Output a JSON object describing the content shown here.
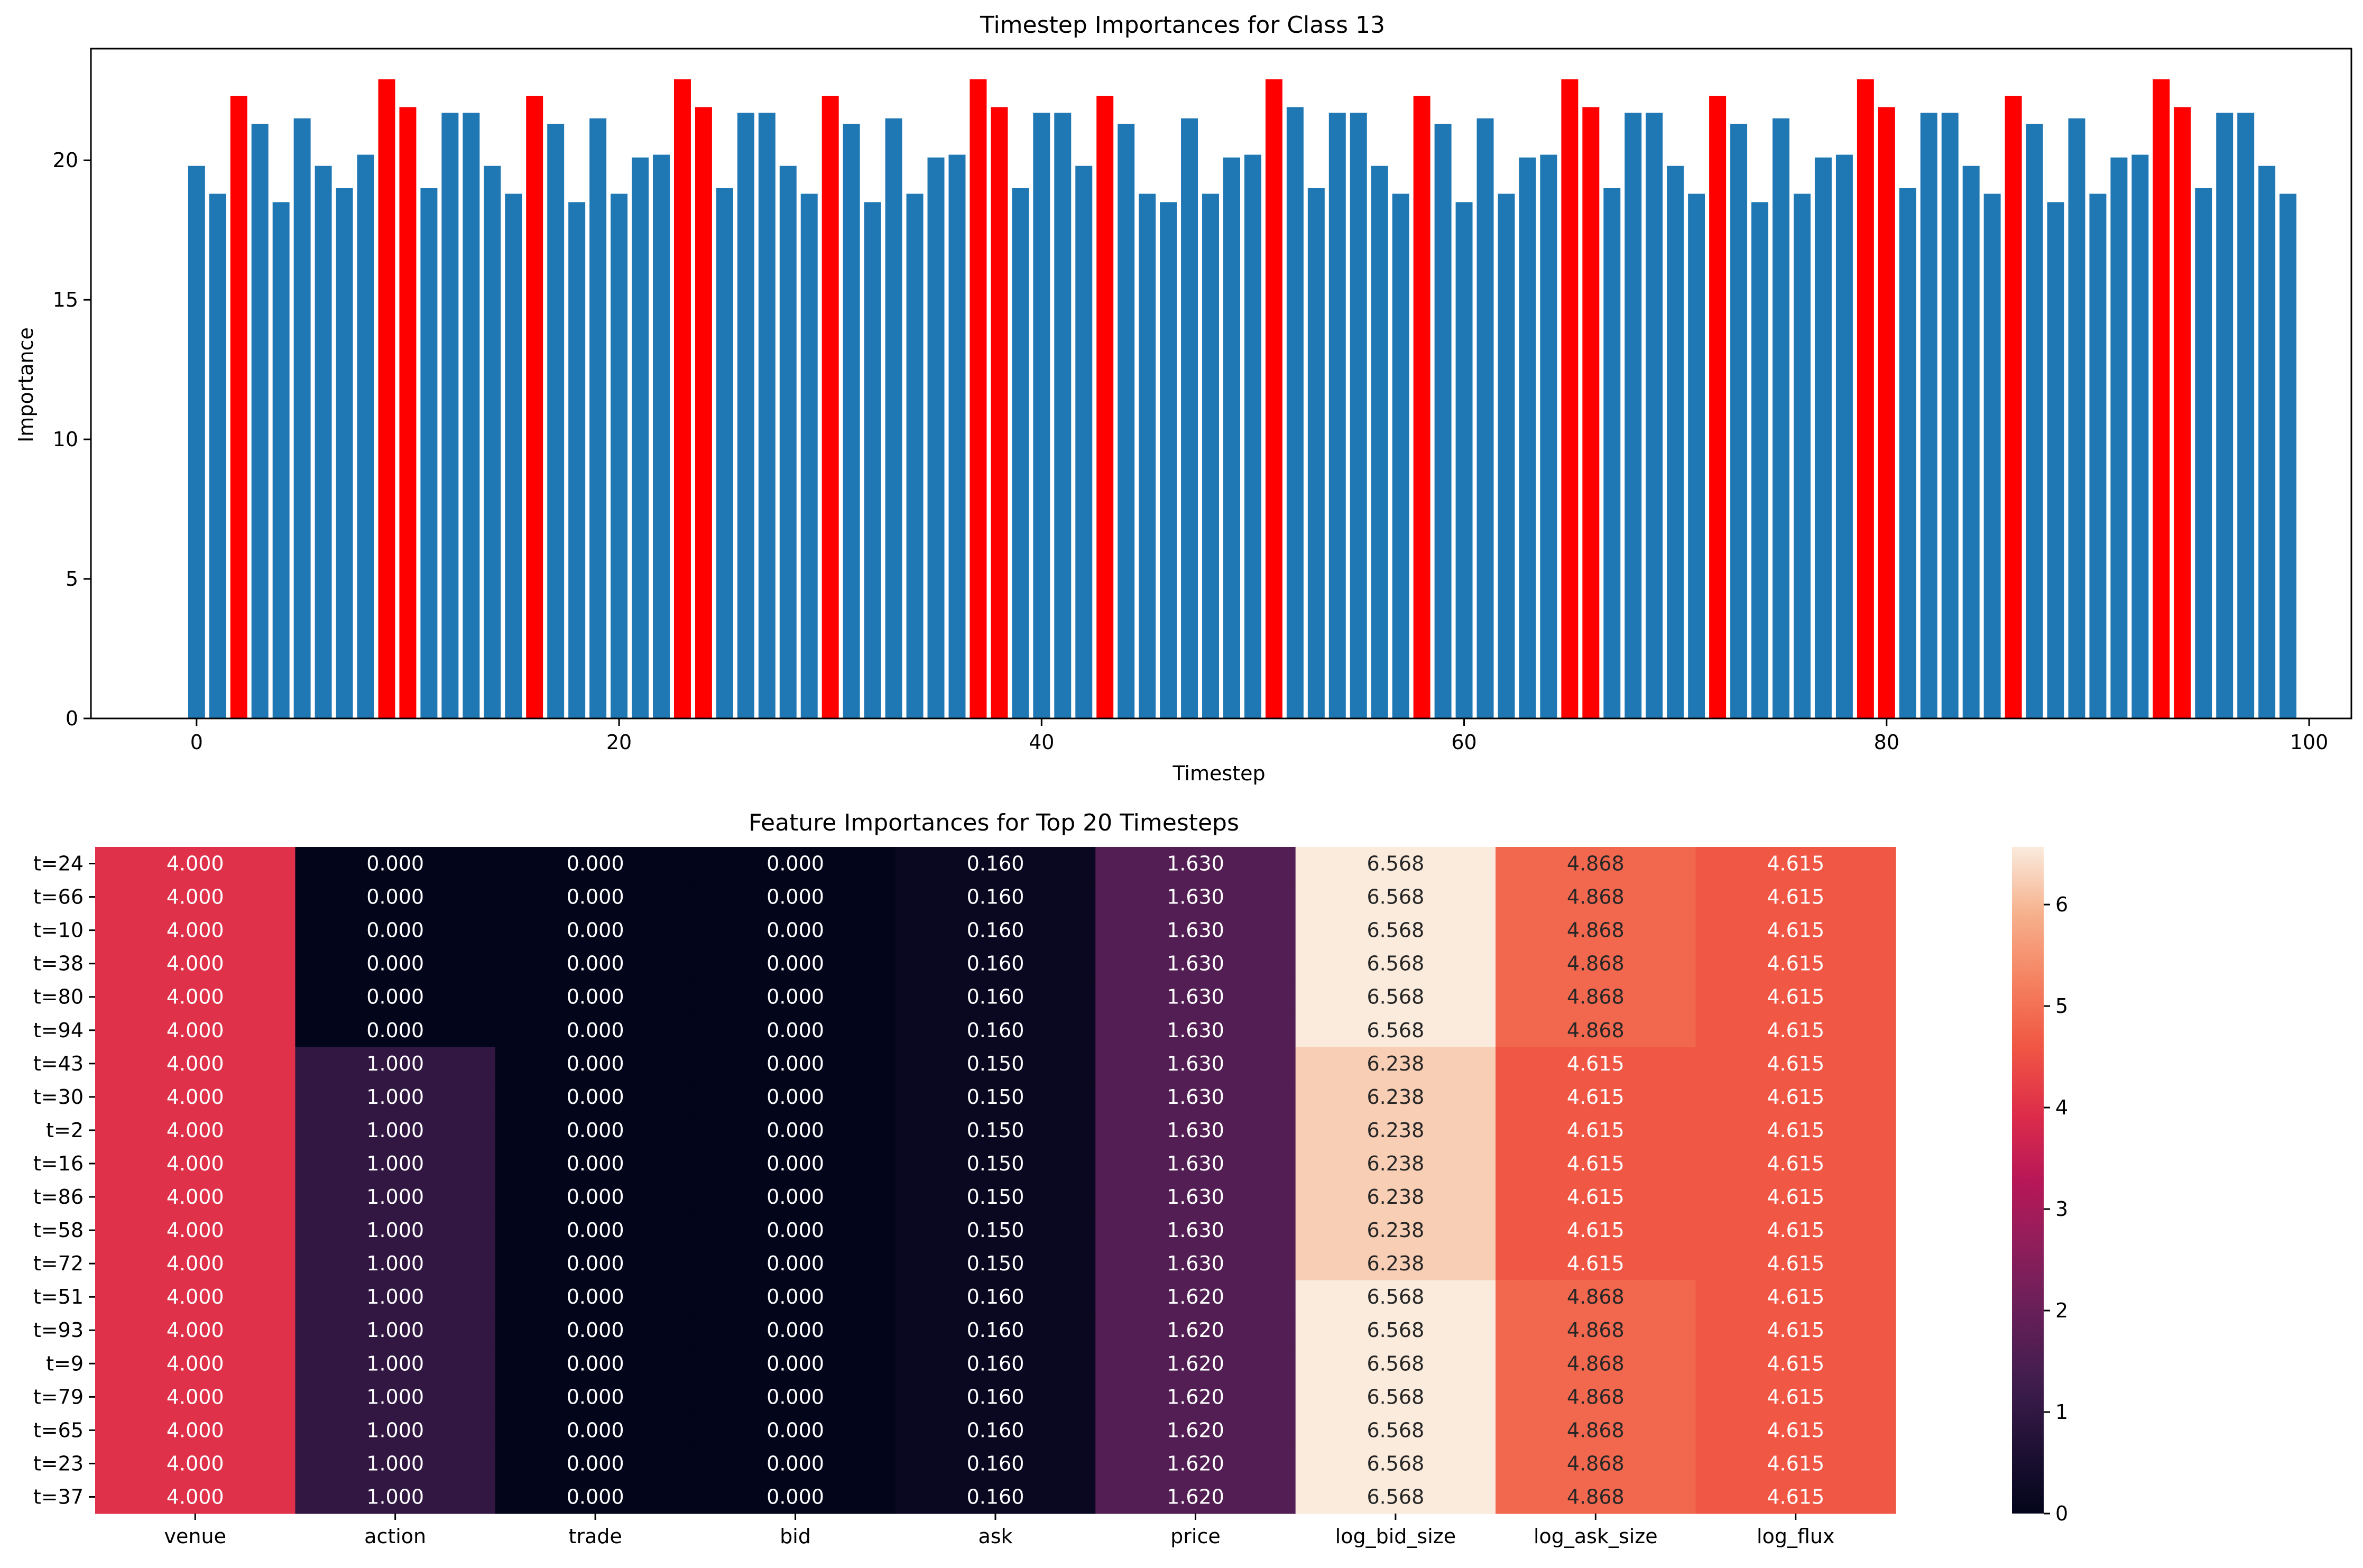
{
  "chart_data": [
    {
      "type": "bar",
      "title": "Timestep Importances for Class 13",
      "xlabel": "Timestep",
      "ylabel": "Importance",
      "xlim": [
        -5,
        102
      ],
      "ylim": [
        0,
        24
      ],
      "xticks": [
        0,
        20,
        40,
        60,
        80,
        100
      ],
      "yticks": [
        0,
        5,
        10,
        15,
        20
      ],
      "colors": {
        "normal": "#1f77b4",
        "top": "#ff0000"
      },
      "x": [
        0,
        1,
        2,
        3,
        4,
        5,
        6,
        7,
        8,
        9,
        10,
        11,
        12,
        13,
        14,
        15,
        16,
        17,
        18,
        19,
        20,
        21,
        22,
        23,
        24,
        25,
        26,
        27,
        28,
        29,
        30,
        31,
        32,
        33,
        34,
        35,
        36,
        37,
        38,
        39,
        40,
        41,
        42,
        43,
        44,
        45,
        46,
        47,
        48,
        49,
        50,
        51,
        52,
        53,
        54,
        55,
        56,
        57,
        58,
        59,
        60,
        61,
        62,
        63,
        64,
        65,
        66,
        67,
        68,
        69,
        70,
        71,
        72,
        73,
        74,
        75,
        76,
        77,
        78,
        79,
        80,
        81,
        82,
        83,
        84,
        85,
        86,
        87,
        88,
        89,
        90,
        91,
        92,
        93,
        94,
        95,
        96,
        97,
        98,
        99
      ],
      "values": [
        19.8,
        18.8,
        22.3,
        21.3,
        18.5,
        21.5,
        19.8,
        19.0,
        20.2,
        22.9,
        21.9,
        19.0,
        21.7,
        21.7,
        19.8,
        18.8,
        22.3,
        21.3,
        18.5,
        21.5,
        18.8,
        20.1,
        20.2,
        22.9,
        21.9,
        19.0,
        21.7,
        21.7,
        19.8,
        18.8,
        22.3,
        21.3,
        18.5,
        21.5,
        18.8,
        20.1,
        20.2,
        22.9,
        21.9,
        19.0,
        21.7,
        21.7,
        19.8,
        22.3,
        21.3,
        18.8,
        18.5,
        21.5,
        18.8,
        20.1,
        20.2,
        22.9,
        21.9,
        19.0,
        21.7,
        21.7,
        19.8,
        18.8,
        22.3,
        21.3,
        18.5,
        21.5,
        18.8,
        20.1,
        20.2,
        22.9,
        21.9,
        19.0,
        21.7,
        21.7,
        19.8,
        18.8,
        22.3,
        21.3,
        18.5,
        21.5,
        18.8,
        20.1,
        20.2,
        22.9,
        21.9,
        19.0,
        21.7,
        21.7,
        19.8,
        18.8,
        22.3,
        21.3,
        18.5,
        21.5,
        18.8,
        20.1,
        20.2,
        22.9,
        21.9,
        19.0,
        21.7,
        21.7,
        19.8,
        18.8
      ],
      "highlighted": [
        2,
        9,
        10,
        16,
        23,
        24,
        30,
        37,
        38,
        43,
        51,
        58,
        65,
        66,
        72,
        79,
        80,
        86,
        93,
        94
      ]
    },
    {
      "type": "heatmap",
      "title": "Feature Importances for Top 20 Timesteps",
      "columns": [
        "venue",
        "action",
        "trade",
        "bid",
        "ask",
        "price",
        "log_bid_size",
        "log_ask_size",
        "log_flux"
      ],
      "rows": [
        "t=24",
        "t=66",
        "t=10",
        "t=38",
        "t=80",
        "t=94",
        "t=43",
        "t=30",
        "t=2",
        "t=16",
        "t=86",
        "t=58",
        "t=72",
        "t=51",
        "t=93",
        "t=9",
        "t=79",
        "t=65",
        "t=23",
        "t=37"
      ],
      "values": [
        [
          4.0,
          0.0,
          0.0,
          0.0,
          0.16,
          1.63,
          6.568,
          4.868,
          4.615
        ],
        [
          4.0,
          0.0,
          0.0,
          0.0,
          0.16,
          1.63,
          6.568,
          4.868,
          4.615
        ],
        [
          4.0,
          0.0,
          0.0,
          0.0,
          0.16,
          1.63,
          6.568,
          4.868,
          4.615
        ],
        [
          4.0,
          0.0,
          0.0,
          0.0,
          0.16,
          1.63,
          6.568,
          4.868,
          4.615
        ],
        [
          4.0,
          0.0,
          0.0,
          0.0,
          0.16,
          1.63,
          6.568,
          4.868,
          4.615
        ],
        [
          4.0,
          0.0,
          0.0,
          0.0,
          0.16,
          1.63,
          6.568,
          4.868,
          4.615
        ],
        [
          4.0,
          1.0,
          0.0,
          0.0,
          0.15,
          1.63,
          6.238,
          4.615,
          4.615
        ],
        [
          4.0,
          1.0,
          0.0,
          0.0,
          0.15,
          1.63,
          6.238,
          4.615,
          4.615
        ],
        [
          4.0,
          1.0,
          0.0,
          0.0,
          0.15,
          1.63,
          6.238,
          4.615,
          4.615
        ],
        [
          4.0,
          1.0,
          0.0,
          0.0,
          0.15,
          1.63,
          6.238,
          4.615,
          4.615
        ],
        [
          4.0,
          1.0,
          0.0,
          0.0,
          0.15,
          1.63,
          6.238,
          4.615,
          4.615
        ],
        [
          4.0,
          1.0,
          0.0,
          0.0,
          0.15,
          1.63,
          6.238,
          4.615,
          4.615
        ],
        [
          4.0,
          1.0,
          0.0,
          0.0,
          0.15,
          1.63,
          6.238,
          4.615,
          4.615
        ],
        [
          4.0,
          1.0,
          0.0,
          0.0,
          0.16,
          1.62,
          6.568,
          4.868,
          4.615
        ],
        [
          4.0,
          1.0,
          0.0,
          0.0,
          0.16,
          1.62,
          6.568,
          4.868,
          4.615
        ],
        [
          4.0,
          1.0,
          0.0,
          0.0,
          0.16,
          1.62,
          6.568,
          4.868,
          4.615
        ],
        [
          4.0,
          1.0,
          0.0,
          0.0,
          0.16,
          1.62,
          6.568,
          4.868,
          4.615
        ],
        [
          4.0,
          1.0,
          0.0,
          0.0,
          0.16,
          1.62,
          6.568,
          4.868,
          4.615
        ],
        [
          4.0,
          1.0,
          0.0,
          0.0,
          0.16,
          1.62,
          6.568,
          4.868,
          4.615
        ],
        [
          4.0,
          1.0,
          0.0,
          0.0,
          0.16,
          1.62,
          6.568,
          4.868,
          4.615
        ]
      ],
      "colorbar": {
        "min": 0,
        "max": 6.568,
        "ticks": [
          0,
          1,
          2,
          3,
          4,
          5,
          6
        ],
        "colormap": "rocket"
      }
    }
  ]
}
